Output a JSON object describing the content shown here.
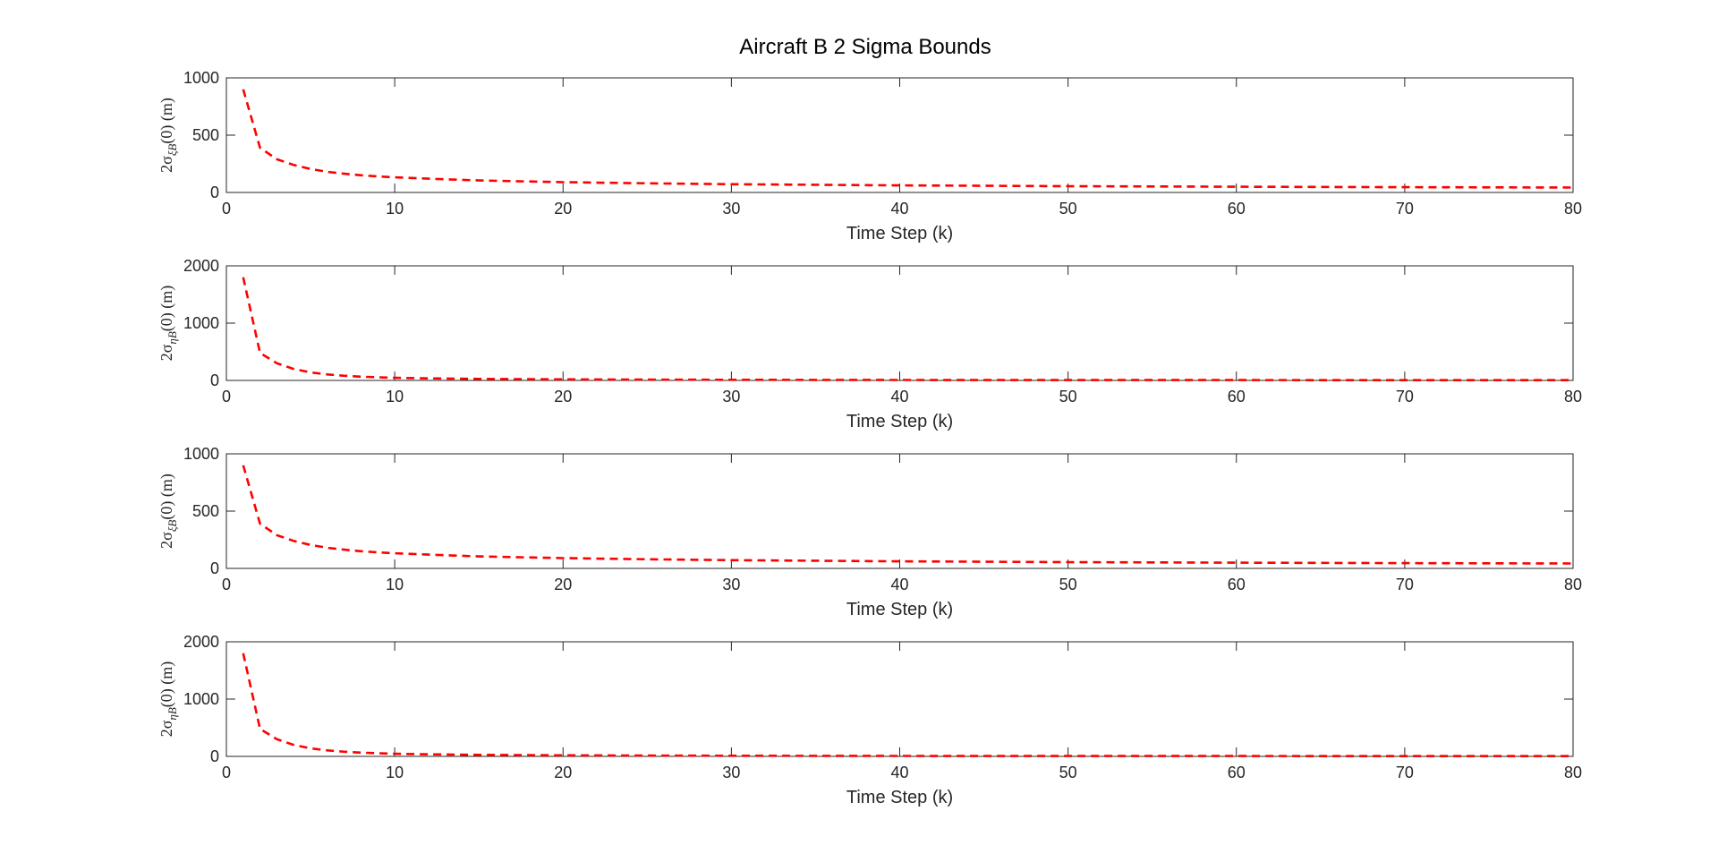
{
  "figure": {
    "title": "Aircraft B 2 Sigma Bounds",
    "colors": {
      "axis": "#262626",
      "series": "#ff0000",
      "background": "#ffffff"
    }
  },
  "chart_data": [
    {
      "type": "line",
      "xlabel": "Time Step (k)",
      "ylabel_base": "2σ",
      "ylabel_sub": "ξB",
      "ylabel_suffix": "(0)  (m)",
      "xlim": [
        0,
        80
      ],
      "ylim": [
        0,
        1000
      ],
      "xticks": [
        0,
        10,
        20,
        30,
        40,
        50,
        60,
        70,
        80
      ],
      "yticks": [
        0,
        500,
        1000
      ],
      "grid": false,
      "series": [
        {
          "style": "dashed",
          "color": "#ff0000",
          "x": [
            1,
            2,
            3,
            4,
            5,
            6,
            7,
            8,
            9,
            10,
            12,
            15,
            20,
            25,
            30,
            40,
            50,
            60,
            70,
            80
          ],
          "values": [
            900,
            390,
            290,
            240,
            205,
            180,
            163,
            150,
            140,
            132,
            120,
            105,
            90,
            80,
            72,
            62,
            55,
            50,
            46,
            43
          ]
        }
      ]
    },
    {
      "type": "line",
      "xlabel": "Time Step (k)",
      "ylabel_base": "2σ",
      "ylabel_sub": "ηB",
      "ylabel_suffix": "(0)  (m)",
      "xlim": [
        0,
        80
      ],
      "ylim": [
        0,
        2000
      ],
      "xticks": [
        0,
        10,
        20,
        30,
        40,
        50,
        60,
        70,
        80
      ],
      "yticks": [
        0,
        1000,
        2000
      ],
      "grid": false,
      "series": [
        {
          "style": "dashed",
          "color": "#ff0000",
          "x": [
            1,
            2,
            3,
            4,
            5,
            6,
            7,
            8,
            9,
            10,
            12,
            15,
            20,
            25,
            30,
            40,
            50,
            60,
            70,
            80
          ],
          "values": [
            1800,
            480,
            300,
            200,
            140,
            105,
            82,
            66,
            55,
            46,
            36,
            26,
            18,
            14,
            11,
            8,
            7,
            6,
            5,
            5
          ]
        }
      ]
    },
    {
      "type": "line",
      "xlabel": "Time Step (k)",
      "ylabel_base": "2σ",
      "ylabel_sub": "ξ̇B",
      "ylabel_suffix": "(0)  (m)",
      "xlim": [
        0,
        80
      ],
      "ylim": [
        0,
        1000
      ],
      "xticks": [
        0,
        10,
        20,
        30,
        40,
        50,
        60,
        70,
        80
      ],
      "yticks": [
        0,
        500,
        1000
      ],
      "grid": false,
      "series": [
        {
          "style": "dashed",
          "color": "#ff0000",
          "x": [
            1,
            2,
            3,
            4,
            5,
            6,
            7,
            8,
            9,
            10,
            12,
            15,
            20,
            25,
            30,
            40,
            50,
            60,
            70,
            80
          ],
          "values": [
            900,
            390,
            290,
            240,
            205,
            180,
            163,
            150,
            140,
            132,
            120,
            105,
            90,
            80,
            72,
            62,
            55,
            50,
            46,
            43
          ]
        }
      ]
    },
    {
      "type": "line",
      "xlabel": "Time Step (k)",
      "ylabel_base": "2σ",
      "ylabel_sub": "η̇B",
      "ylabel_suffix": "(0)  (m)",
      "xlim": [
        0,
        80
      ],
      "ylim": [
        0,
        2000
      ],
      "xticks": [
        0,
        10,
        20,
        30,
        40,
        50,
        60,
        70,
        80
      ],
      "yticks": [
        0,
        1000,
        2000
      ],
      "grid": false,
      "series": [
        {
          "style": "dashed",
          "color": "#ff0000",
          "x": [
            1,
            2,
            3,
            4,
            5,
            6,
            7,
            8,
            9,
            10,
            12,
            15,
            20,
            25,
            30,
            40,
            50,
            60,
            70,
            80
          ],
          "values": [
            1800,
            480,
            300,
            200,
            140,
            105,
            82,
            66,
            55,
            46,
            36,
            26,
            18,
            14,
            11,
            8,
            7,
            6,
            5,
            5
          ]
        }
      ]
    }
  ]
}
